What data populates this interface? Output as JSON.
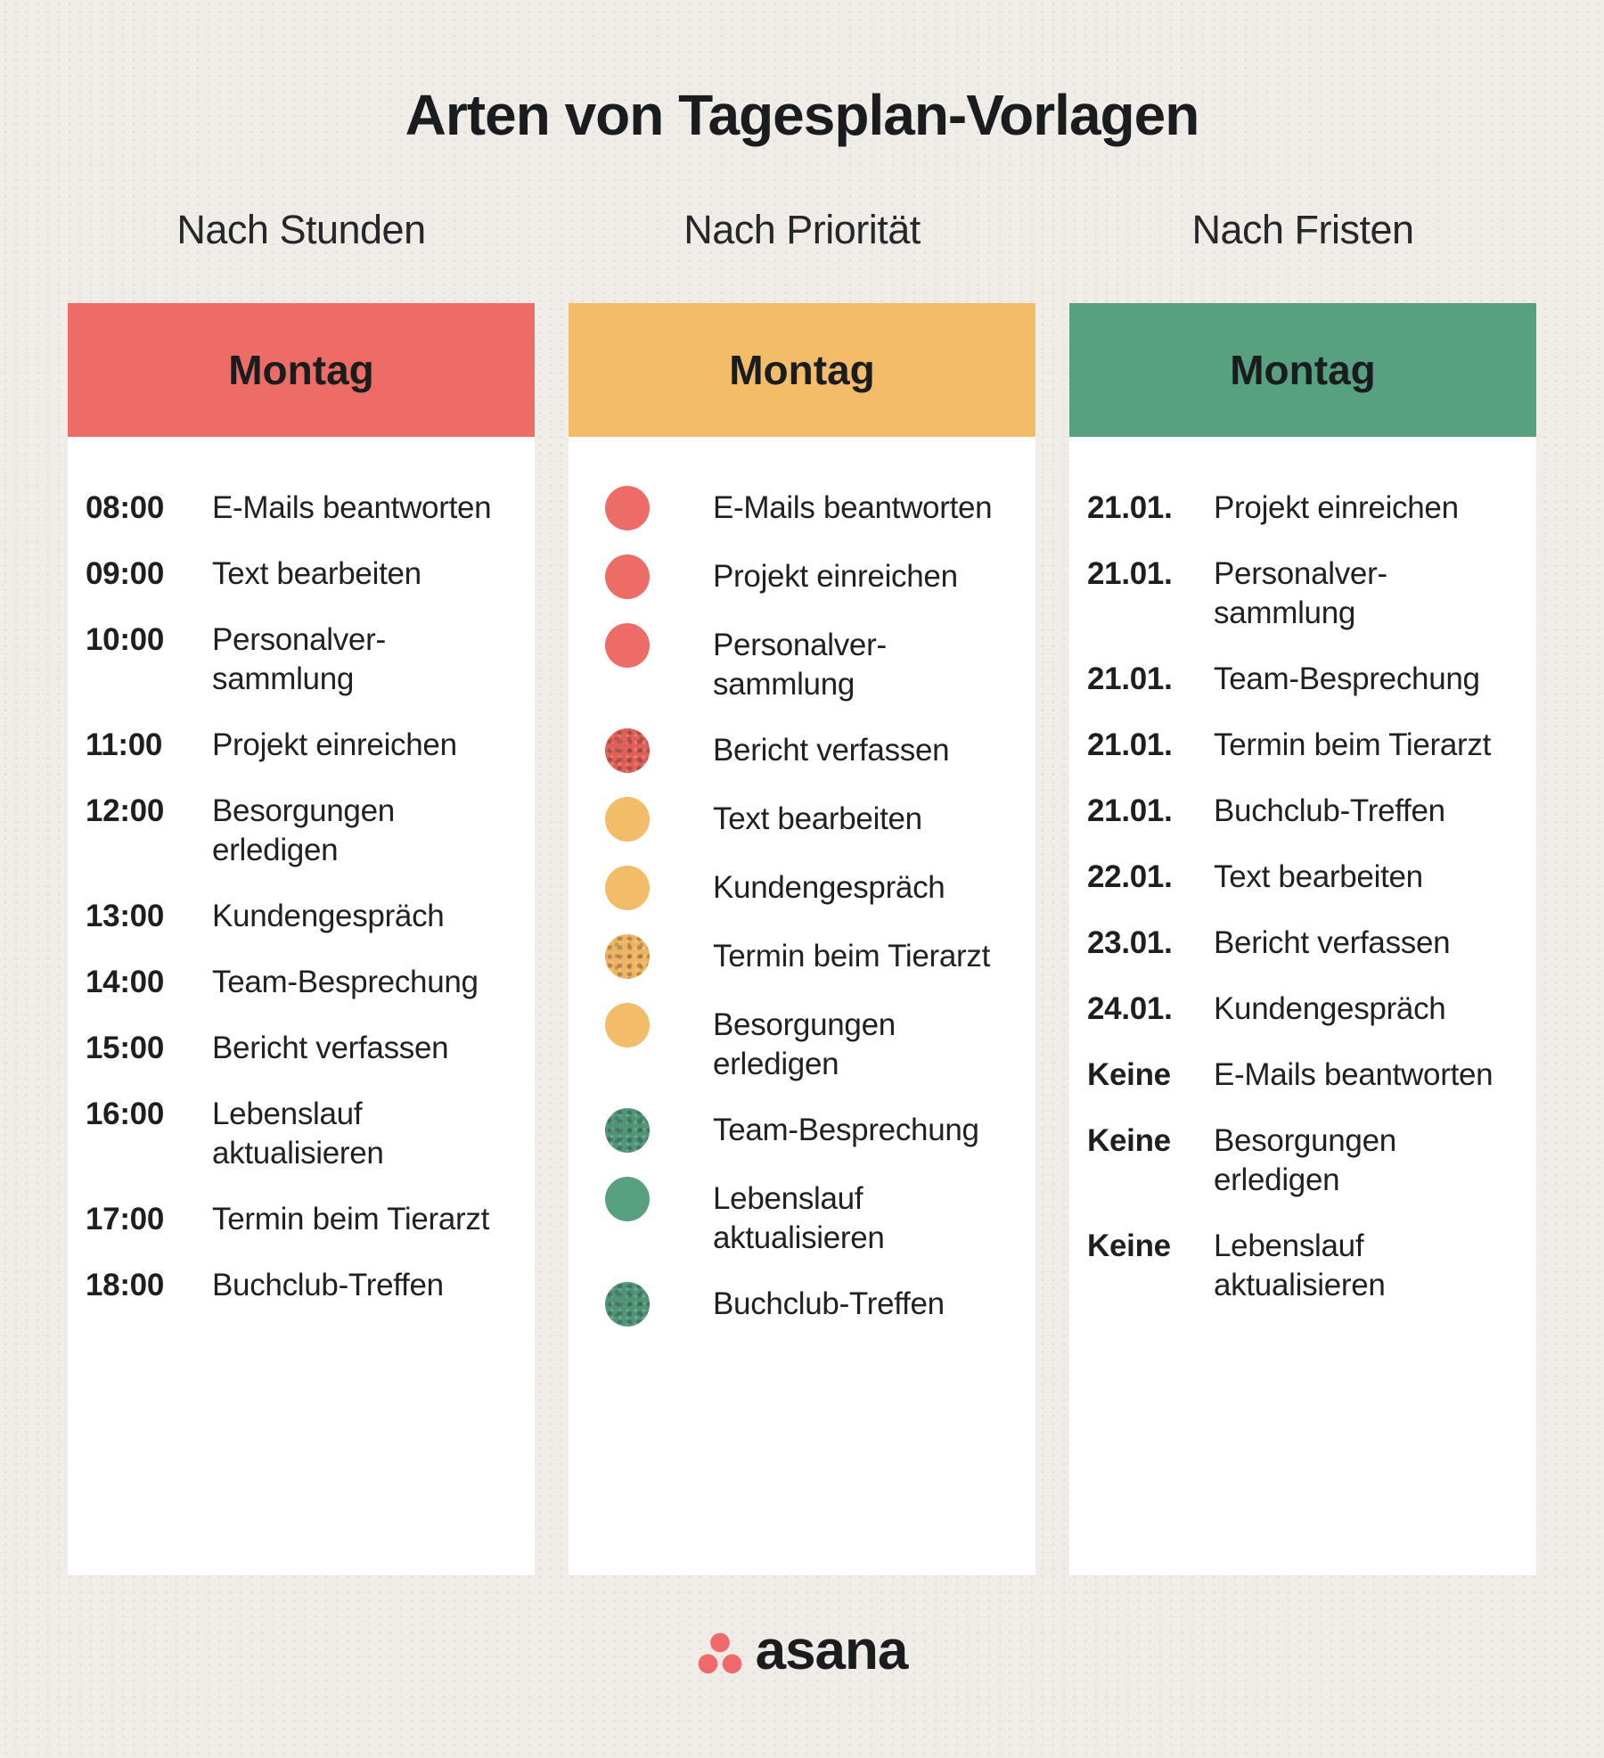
{
  "title": "Arten von Tagesplan-Vorlagen",
  "palette": {
    "background": "#f0ece7",
    "card": "#ffffff",
    "text": "#1e1f21",
    "coral": "#ee6c66",
    "yellow": "#f2bc68",
    "green": "#57a181",
    "logo_coral": "#f0696b"
  },
  "columns": [
    {
      "heading": "Nach Stunden",
      "card_title": "Montag",
      "header_color": "#ee6c66",
      "items": [
        {
          "label": "08:00",
          "task": "E-Mails beantworten"
        },
        {
          "label": "09:00",
          "task": "Text bearbeiten"
        },
        {
          "label": "10:00",
          "task": "Personalver-sammlung"
        },
        {
          "label": "11:00",
          "task": "Projekt einreichen"
        },
        {
          "label": "12:00",
          "task": "Besorgungen erledigen"
        },
        {
          "label": "13:00",
          "task": "Kundengespräch"
        },
        {
          "label": "14:00",
          "task": "Team-Besprechung"
        },
        {
          "label": "15:00",
          "task": "Bericht verfassen"
        },
        {
          "label": "16:00",
          "task": "Lebenslauf aktualisieren"
        },
        {
          "label": "17:00",
          "task": "Termin beim Tierarzt"
        },
        {
          "label": "18:00",
          "task": "Buchclub-Treffen"
        }
      ]
    },
    {
      "heading": "Nach Priorität",
      "card_title": "Montag",
      "header_color": "#f2bc68",
      "items": [
        {
          "dot": {
            "name": "priority-high-dot",
            "color": "#ee6c66",
            "texture": false
          },
          "task": "E-Mails beantworten"
        },
        {
          "dot": {
            "name": "priority-high-dot",
            "color": "#ee6c66",
            "texture": false
          },
          "task": "Projekt einreichen"
        },
        {
          "dot": {
            "name": "priority-high-dot",
            "color": "#ee6c66",
            "texture": false
          },
          "task": "Personalver-sammlung"
        },
        {
          "dot": {
            "name": "priority-high-dot-textured",
            "color": "#e06058",
            "texture": true
          },
          "task": "Bericht verfassen"
        },
        {
          "dot": {
            "name": "priority-medium-dot",
            "color": "#f2bc68",
            "texture": false
          },
          "task": "Text bearbeiten"
        },
        {
          "dot": {
            "name": "priority-medium-dot",
            "color": "#f2bc68",
            "texture": false
          },
          "task": "Kundengespräch"
        },
        {
          "dot": {
            "name": "priority-medium-dot-textured",
            "color": "#eeb460",
            "texture": true
          },
          "task": "Termin beim Tierarzt"
        },
        {
          "dot": {
            "name": "priority-medium-dot",
            "color": "#f2bc68",
            "texture": false
          },
          "task": "Besorgungen erledigen"
        },
        {
          "dot": {
            "name": "priority-low-dot-textured",
            "color": "#4f9679",
            "texture": true
          },
          "task": "Team-Besprechung"
        },
        {
          "dot": {
            "name": "priority-low-dot",
            "color": "#57a181",
            "texture": false
          },
          "task": "Lebenslauf aktualisieren"
        },
        {
          "dot": {
            "name": "priority-low-dot-textured",
            "color": "#4f9679",
            "texture": true
          },
          "task": "Buchclub-Treffen"
        }
      ]
    },
    {
      "heading": "Nach Fristen",
      "card_title": "Montag",
      "header_color": "#57a181",
      "items": [
        {
          "label": "21.01.",
          "task": "Projekt einreichen"
        },
        {
          "label": "21.01.",
          "task": "Personalver-sammlung"
        },
        {
          "label": "21.01.",
          "task": "Team-Besprechung"
        },
        {
          "label": "21.01.",
          "task": "Termin beim Tierarzt"
        },
        {
          "label": "21.01.",
          "task": "Buchclub-Treffen"
        },
        {
          "label": "22.01.",
          "task": "Text bearbeiten"
        },
        {
          "label": "23.01.",
          "task": "Bericht verfassen"
        },
        {
          "label": "24.01.",
          "task": "Kundengespräch"
        },
        {
          "label": "Keine",
          "task": "E-Mails beantworten"
        },
        {
          "label": "Keine",
          "task": "Besorgungen erledigen"
        },
        {
          "label": "Keine",
          "task": "Lebenslauf aktualisieren"
        }
      ]
    }
  ],
  "footer": {
    "brand": "asana"
  }
}
